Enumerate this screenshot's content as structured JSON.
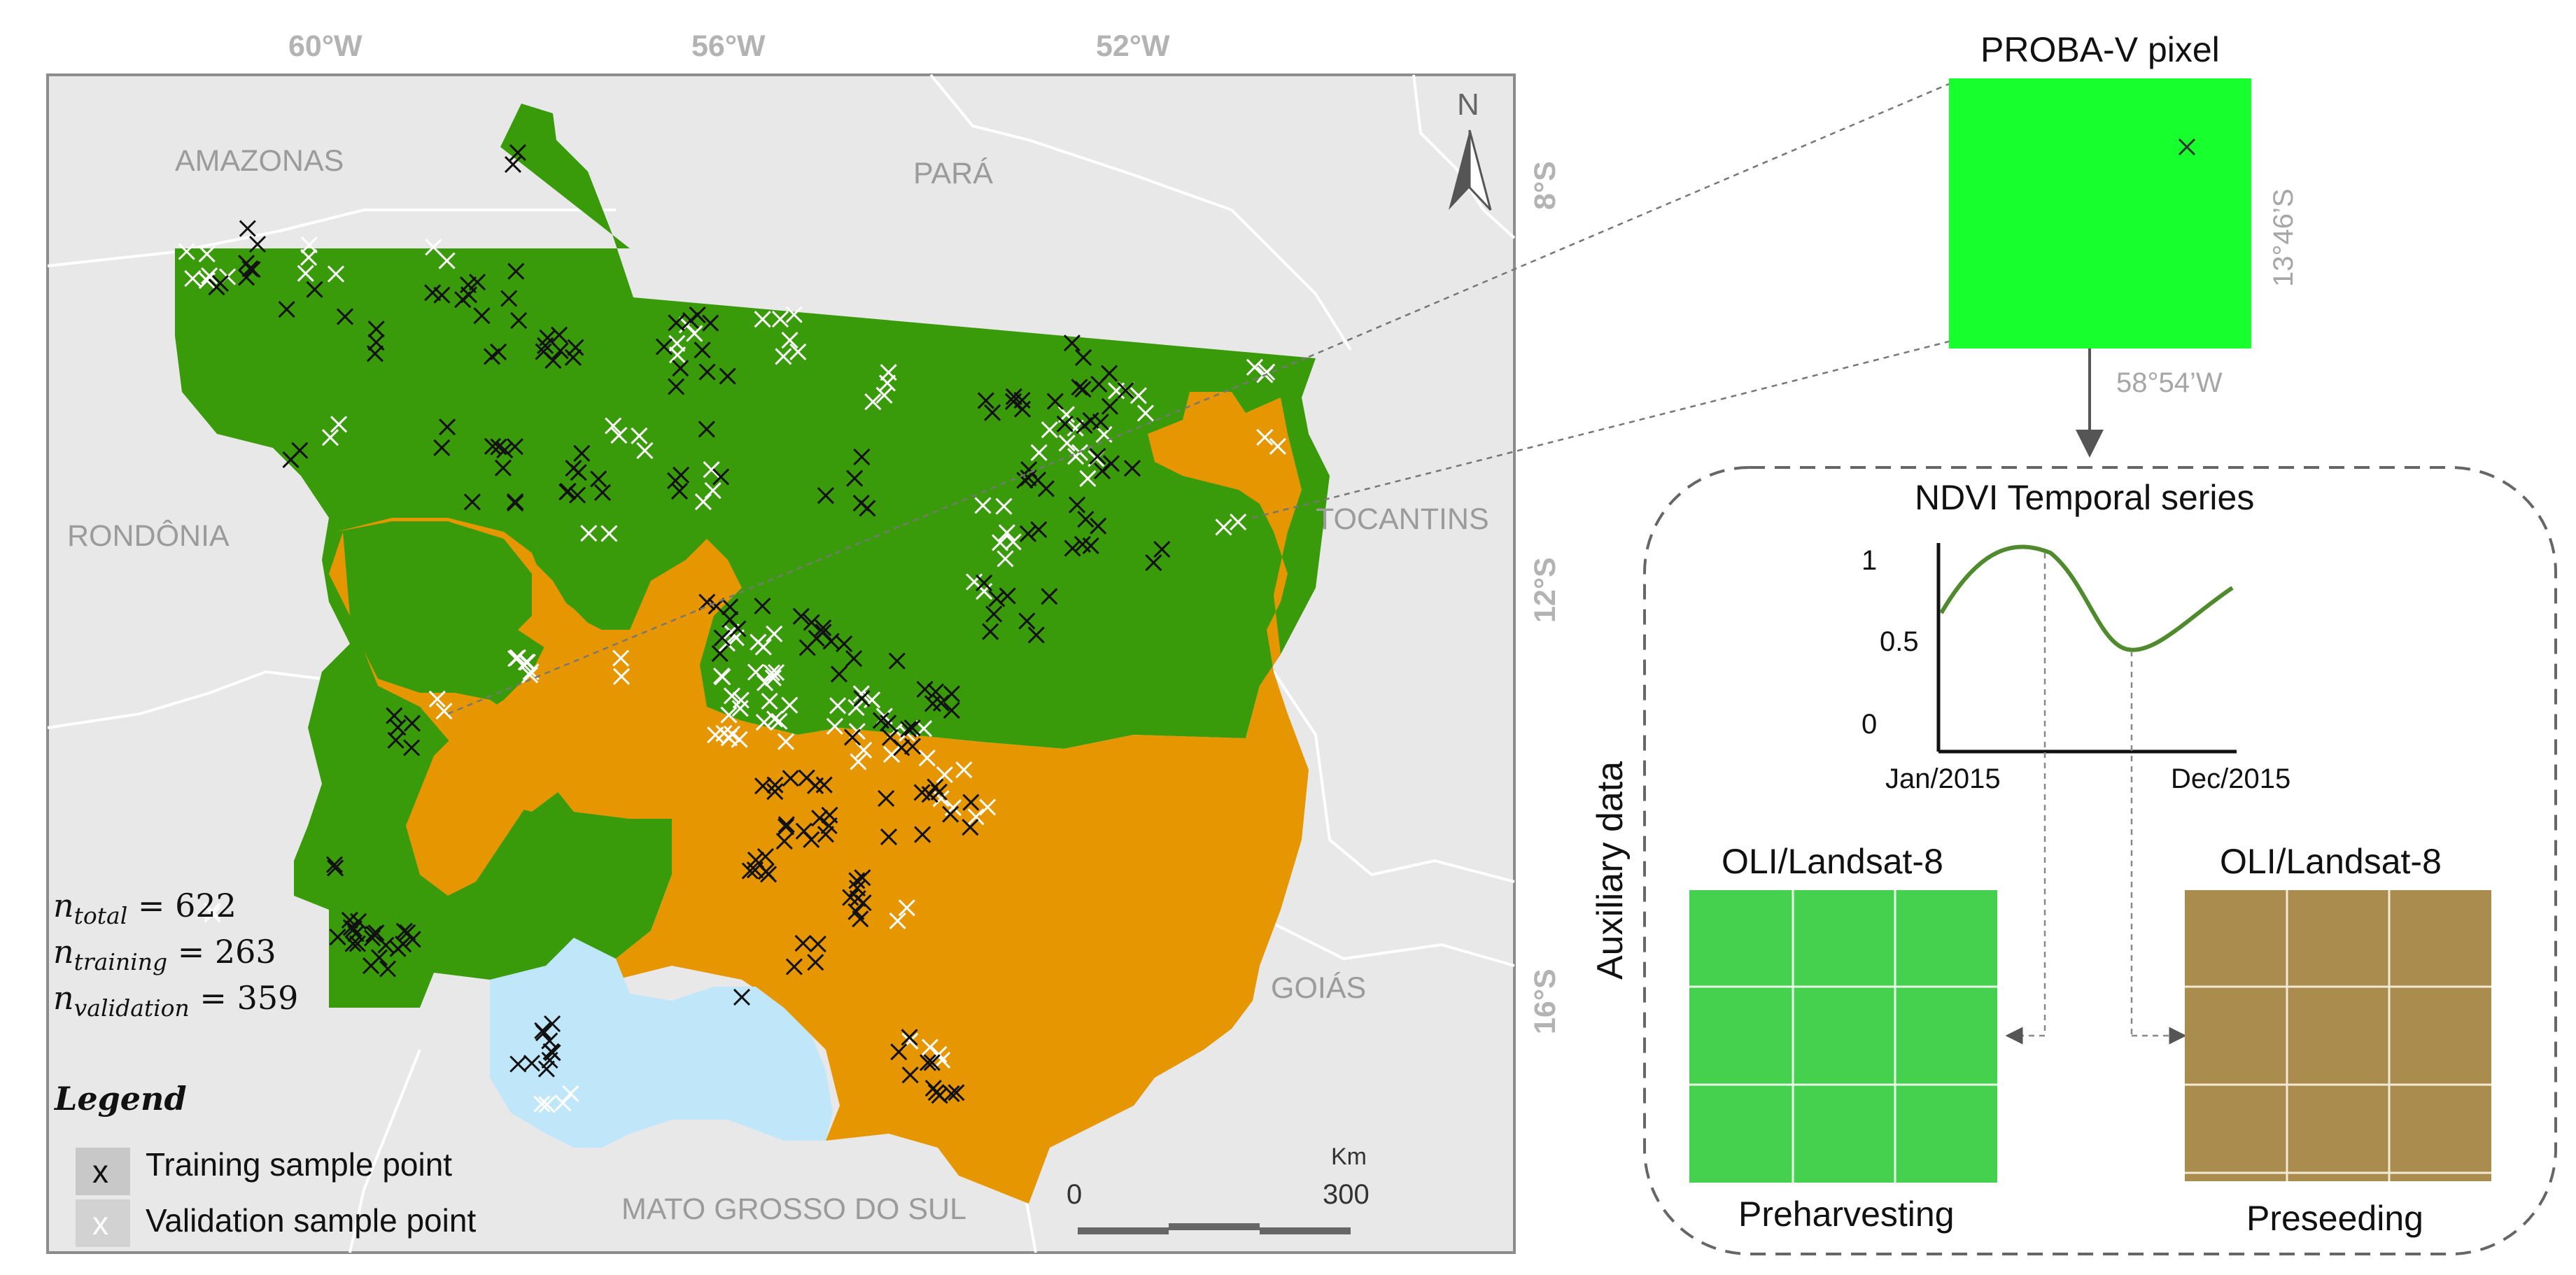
{
  "map": {
    "lon_labels": [
      "60°W",
      "56°W",
      "52°W"
    ],
    "lat_labels": [
      "8°S",
      "12°S",
      "16°S"
    ],
    "north_label": "N",
    "states": {
      "amazonas": "AMAZONAS",
      "para": "PARÁ",
      "rondonia": "RONDÔNIA",
      "tocantins": "TOCANTINS",
      "goias": "GOIÁS",
      "mato_grosso_do_sul": "MATO GROSSO DO SUL"
    },
    "scale": {
      "unit": "Km",
      "min": "0",
      "max": "300"
    },
    "stats": {
      "total": {
        "sub": "total",
        "value": "622"
      },
      "training": {
        "sub": "training",
        "value": "263"
      },
      "validation": {
        "sub": "validation",
        "value": "359"
      },
      "n_symbol": "n",
      "eq": " = "
    },
    "legend": {
      "title": "Legend",
      "training_marker": "x",
      "validation_marker": "x",
      "training_label": "Training sample point",
      "validation_label": "Validation sample point"
    },
    "colors": {
      "amazon": "#3a9b0a",
      "cerrado": "#e59600",
      "pantanal": "#bfe7f9",
      "background": "#e8e8e8",
      "border": "#ffffff"
    }
  },
  "pixel": {
    "title": "PROBA-V pixel",
    "lat": "13°46’S",
    "lon": "58°54’W",
    "color": "#17ff2d"
  },
  "ndvi": {
    "title": "NDVI Temporal series",
    "y_ticks": [
      "1",
      "0.5",
      "0"
    ],
    "x_start": "Jan/2015",
    "x_end": "Dec/2015",
    "line_color": "#4f8a2c"
  },
  "aux": {
    "label": "Auxiliary data",
    "left_title": "OLI/Landsat-8",
    "right_title": "OLI/Landsat-8",
    "left_caption": "Preharvesting",
    "right_caption": "Preseeding",
    "left_color": "#44d14e",
    "right_color": "#a98c4e"
  }
}
